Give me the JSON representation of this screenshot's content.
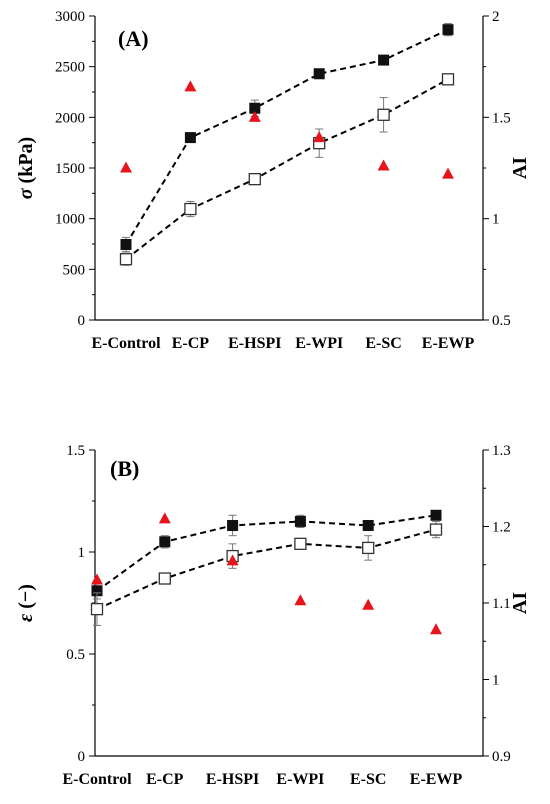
{
  "colors": {
    "filled": "#111111",
    "open": "#ffffff",
    "open_stroke": "#333333",
    "triangle": "#e8141b",
    "axis": "#000000"
  },
  "chart_data": [
    {
      "type": "scatter",
      "panel_label": "(A)",
      "categories": [
        "E-Control",
        "E-CP",
        "E-HSPI",
        "E-WPI",
        "E-SC",
        "E-EWP"
      ],
      "ylabel_symbol": "σ",
      "ylabel_text": " (kPa)",
      "ylabel_right": "AI",
      "ylim": [
        0,
        3000
      ],
      "yticks": [
        "0",
        "500",
        "1000",
        "1500",
        "2000",
        "2500",
        "3000"
      ],
      "yticks_values": [
        0,
        500,
        1000,
        1500,
        2000,
        2500,
        3000
      ],
      "ylim_right": [
        0.5,
        2
      ],
      "yticks_right": [
        "0.5",
        "1",
        "1.5",
        "2"
      ],
      "yticks_right_values": [
        0.5,
        1,
        1.5,
        2
      ],
      "series": [
        {
          "marker": "filled-square",
          "axis": "left",
          "line": "dashed",
          "values": [
            745,
            1800,
            2090,
            2430,
            2565,
            2865
          ],
          "errors": [
            70,
            30,
            80,
            30,
            30,
            60
          ]
        },
        {
          "marker": "open-square",
          "axis": "left",
          "line": "dashed",
          "values": [
            600,
            1095,
            1390,
            1745,
            2025,
            2375
          ],
          "errors": [
            60,
            75,
            45,
            140,
            170,
            30
          ]
        },
        {
          "marker": "triangle",
          "axis": "right",
          "line": "none",
          "values": [
            1.25,
            1.65,
            1.5,
            1.4,
            1.26,
            1.22
          ]
        }
      ]
    },
    {
      "type": "scatter",
      "panel_label": "(B)",
      "categories": [
        "E-Control",
        "E-CP",
        "E-HSPI",
        "E-WPI",
        "E-SC",
        "E-EWP"
      ],
      "ylabel_symbol": "ε",
      "ylabel_text": " (−)",
      "ylabel_right": "AI",
      "ylim": [
        0,
        1.5
      ],
      "yticks": [
        "0",
        "0.5",
        "1",
        "1.5"
      ],
      "yticks_values": [
        0,
        0.5,
        1,
        1.5
      ],
      "ylim_right": [
        0.9,
        1.3
      ],
      "yticks_right": [
        "0.9",
        "1",
        "1.1",
        "1.2",
        "1.3"
      ],
      "yticks_right_values": [
        0.9,
        1.0,
        1.1,
        1.2,
        1.3
      ],
      "series": [
        {
          "marker": "filled-square",
          "axis": "left",
          "line": "dashed",
          "values": [
            0.81,
            1.05,
            1.13,
            1.15,
            1.13,
            1.18
          ],
          "errors": [
            0.04,
            0.03,
            0.05,
            0.03,
            0.02,
            0.02
          ]
        },
        {
          "marker": "open-square",
          "axis": "left",
          "line": "dashed",
          "values": [
            0.72,
            0.87,
            0.98,
            1.04,
            1.02,
            1.11
          ],
          "errors": [
            0.08,
            0.01,
            0.06,
            0.02,
            0.06,
            0.04
          ]
        },
        {
          "marker": "triangle",
          "axis": "right",
          "line": "none",
          "values": [
            1.13,
            1.21,
            1.155,
            1.103,
            1.097,
            1.065
          ]
        }
      ]
    }
  ]
}
